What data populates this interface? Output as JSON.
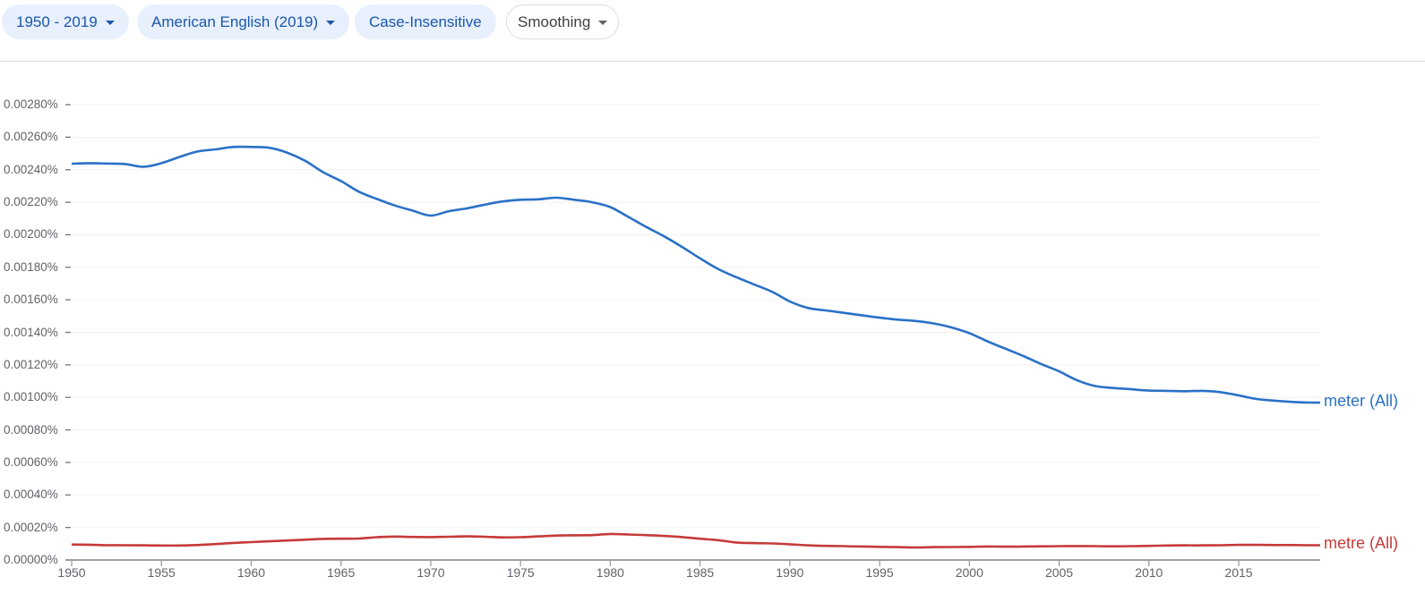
{
  "toolbar": {
    "year_range": {
      "label": "1950 - 2019",
      "icon": "caret-down-icon"
    },
    "corpus": {
      "label": "American English (2019)",
      "icon": "caret-down-icon"
    },
    "case": {
      "label": "Case-Insensitive"
    },
    "smoothing": {
      "label": "Smoothing",
      "icon": "caret-down-icon"
    }
  },
  "colors": {
    "chip_bg": "#e8f0fe",
    "chip_text": "#1a57a8",
    "meter_line": "#2a71c7",
    "metre_line": "#c63a3a",
    "grid": "#f1f1f1",
    "axis": "#9e9e9e",
    "tick_text": "#5f6368"
  },
  "chart_data": {
    "type": "line",
    "title": "",
    "xlabel": "",
    "ylabel": "",
    "xlim": [
      1950,
      2019
    ],
    "ylim": [
      0,
      0.0028
    ],
    "grid": true,
    "legend_position": "inline-right",
    "y_ticks": [
      "0.00280%",
      "0.00260%",
      "0.00240%",
      "0.00220%",
      "0.00200%",
      "0.00180%",
      "0.00160%",
      "0.00140%",
      "0.00120%",
      "0.00100%",
      "0.00080%",
      "0.00060%",
      "0.00040%",
      "0.00020%",
      "0.00000%"
    ],
    "x_ticks": [
      "1950",
      "1955",
      "1960",
      "1965",
      "1970",
      "1975",
      "1980",
      "1985",
      "1990",
      "1995",
      "2000",
      "2005",
      "2010",
      "2015"
    ],
    "x": [
      1950,
      1951,
      1952,
      1953,
      1954,
      1955,
      1956,
      1957,
      1958,
      1959,
      1960,
      1961,
      1962,
      1963,
      1964,
      1965,
      1966,
      1967,
      1968,
      1969,
      1970,
      1971,
      1972,
      1973,
      1974,
      1975,
      1976,
      1977,
      1978,
      1979,
      1980,
      1981,
      1982,
      1983,
      1984,
      1985,
      1986,
      1987,
      1988,
      1989,
      1990,
      1991,
      1992,
      1993,
      1994,
      1995,
      1996,
      1997,
      1998,
      1999,
      2000,
      2001,
      2002,
      2003,
      2004,
      2005,
      2006,
      2007,
      2008,
      2009,
      2010,
      2011,
      2012,
      2013,
      2014,
      2015,
      2016,
      2017,
      2018,
      2019
    ],
    "series": [
      {
        "name": "meter (All)",
        "color": "#2a71c7",
        "values": [
          0.002437,
          0.00244,
          0.002438,
          0.002435,
          0.002418,
          0.00244,
          0.002478,
          0.002512,
          0.002525,
          0.00254,
          0.00254,
          0.002535,
          0.002505,
          0.002455,
          0.002385,
          0.00233,
          0.002265,
          0.00222,
          0.00218,
          0.002148,
          0.002118,
          0.002145,
          0.002162,
          0.002185,
          0.002205,
          0.002215,
          0.002218,
          0.002228,
          0.002215,
          0.0022,
          0.00217,
          0.00211,
          0.002048,
          0.00199,
          0.001925,
          0.001855,
          0.00179,
          0.00174,
          0.001695,
          0.00165,
          0.00159,
          0.00155,
          0.001535,
          0.00152,
          0.001505,
          0.00149,
          0.001478,
          0.00147,
          0.001455,
          0.00143,
          0.001395,
          0.001345,
          0.0013,
          0.001255,
          0.001205,
          0.00116,
          0.001105,
          0.00107,
          0.001058,
          0.00105,
          0.001042,
          0.00104,
          0.001038,
          0.00104,
          0.001032,
          0.001012,
          0.00099,
          0.00098,
          0.000972,
          0.000968
        ]
      },
      {
        "name": "metre (All)",
        "color": "#c63a3a",
        "values": [
          9.5e-05,
          9.4e-05,
          9.1e-05,
          9.1e-05,
          9e-05,
          8.9e-05,
          8.9e-05,
          9.2e-05,
          9.8e-05,
          0.000105,
          0.00011,
          0.000115,
          0.00012,
          0.000125,
          0.00013,
          0.000131,
          0.000132,
          0.00014,
          0.000144,
          0.000142,
          0.000141,
          0.000143,
          0.000145,
          0.000143,
          0.000139,
          0.00014,
          0.000145,
          0.00015,
          0.000152,
          0.000153,
          0.00016,
          0.000157,
          0.000153,
          0.000148,
          0.000141,
          0.000131,
          0.000122,
          0.000108,
          0.000104,
          0.000102,
          9.7e-05,
          9e-05,
          8.7e-05,
          8.5e-05,
          8.3e-05,
          8.1e-05,
          7.9e-05,
          7.7e-05,
          7.9e-05,
          8e-05,
          8.1e-05,
          8.3e-05,
          8.2e-05,
          8.3e-05,
          8.4e-05,
          8.5e-05,
          8.6e-05,
          8.5e-05,
          8.4e-05,
          8.5e-05,
          8.7e-05,
          8.9e-05,
          9e-05,
          9e-05,
          9.1e-05,
          9.3e-05,
          9.3e-05,
          9.2e-05,
          9.2e-05,
          9.1e-05
        ]
      }
    ]
  }
}
